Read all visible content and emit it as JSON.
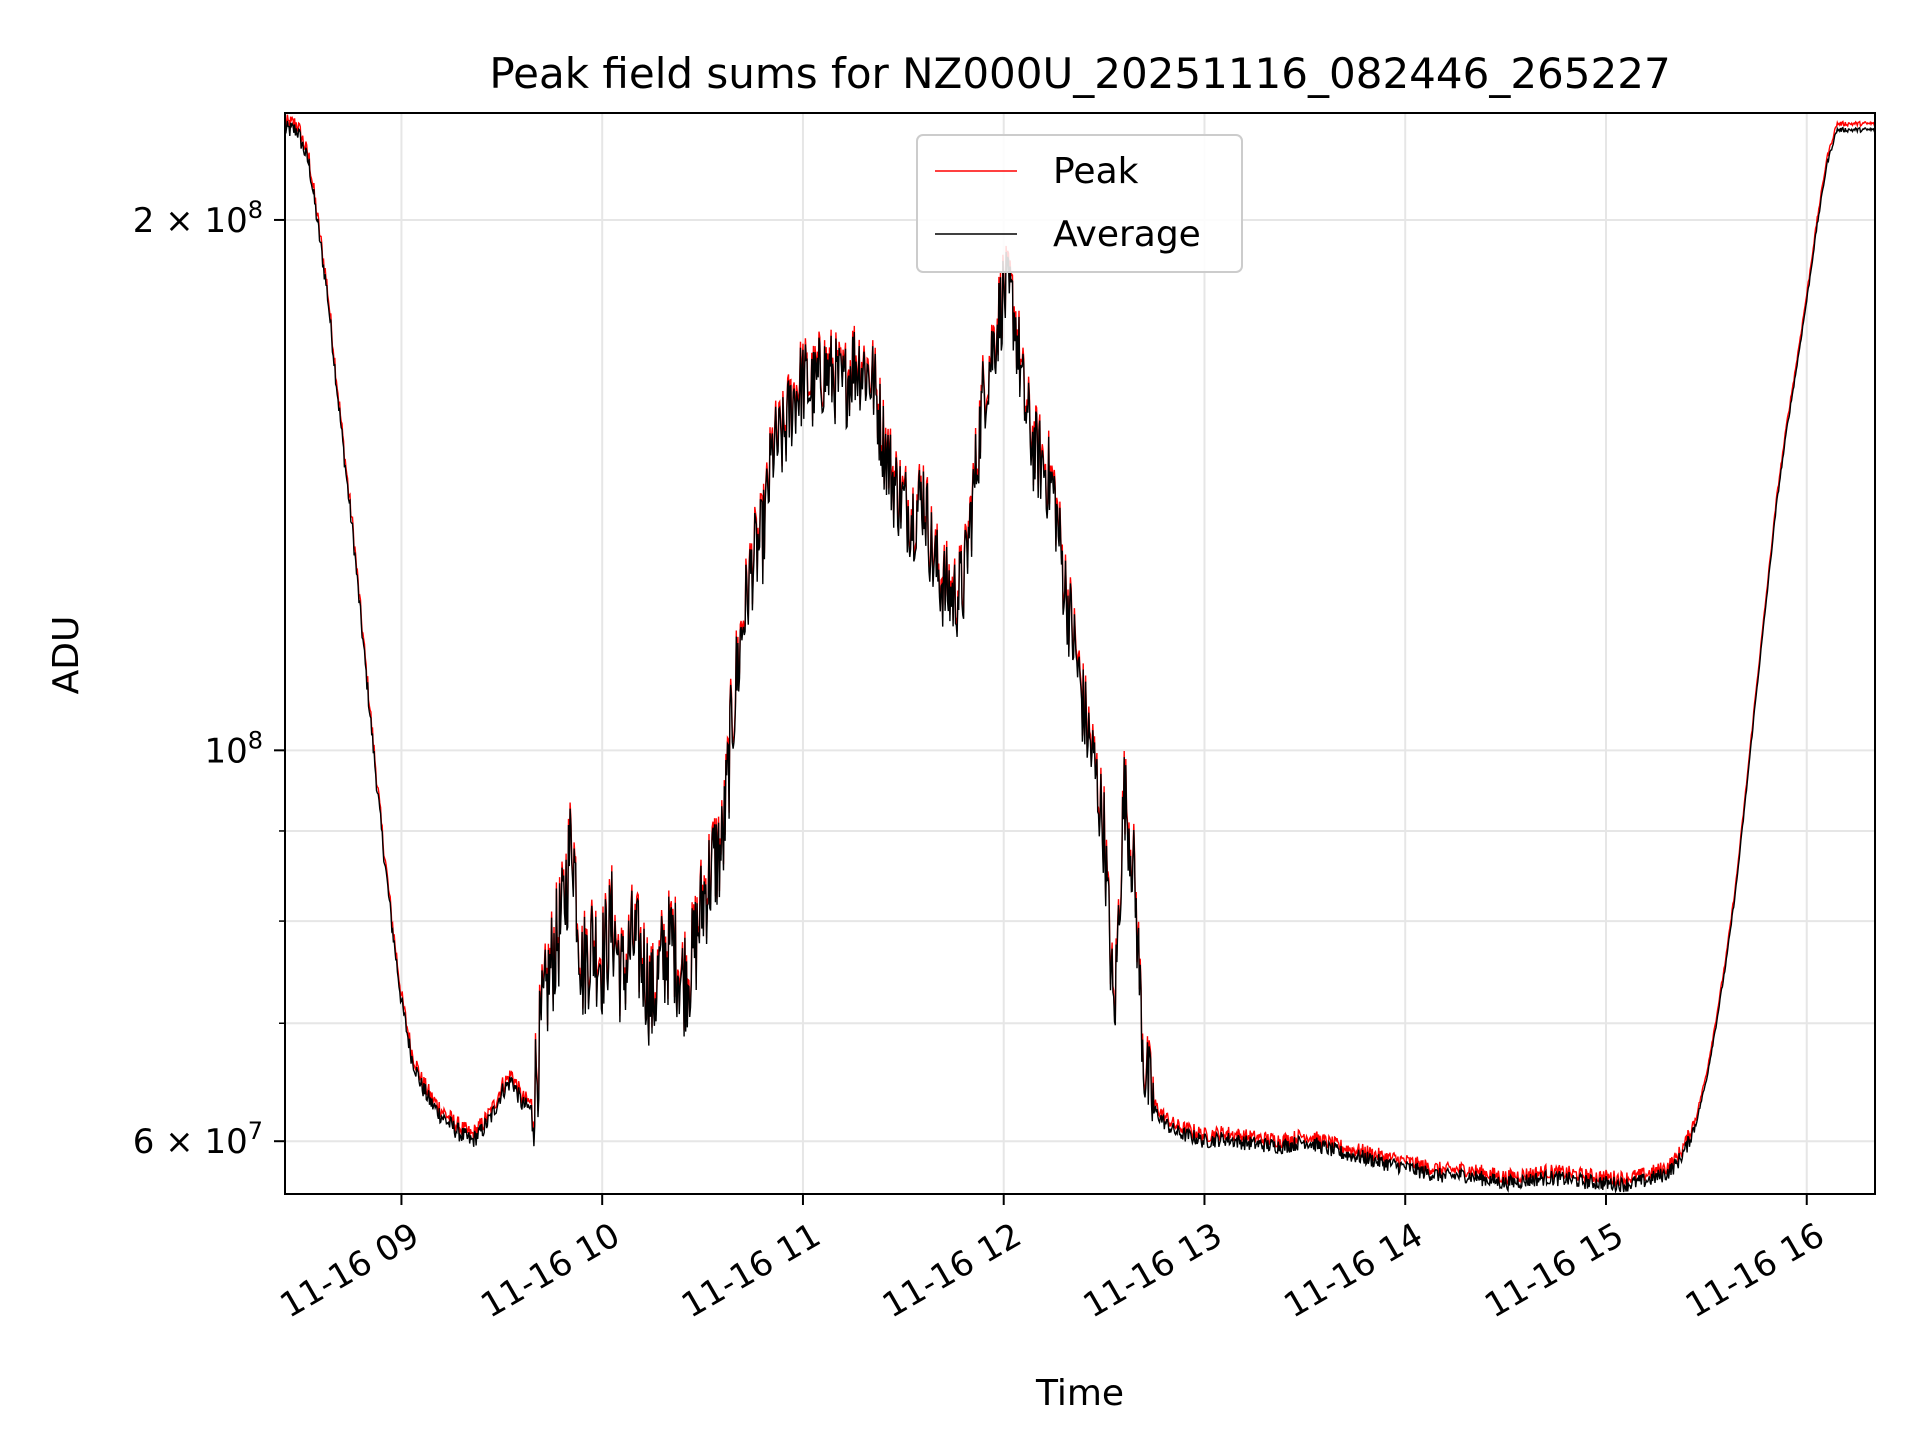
{
  "chart_data": {
    "type": "line",
    "title": "Peak field sums for NZ000U_20251116_082446_265227",
    "xlabel": "Time",
    "ylabel": "ADU",
    "yscale": "log",
    "xlim": [
      8.42,
      16.34
    ],
    "ylim": [
      56000000,
      230000000
    ],
    "grid": true,
    "legend_position": "upper center",
    "x_ticks": [
      {
        "value": 9,
        "label": "11-16 09"
      },
      {
        "value": 10,
        "label": "11-16 10"
      },
      {
        "value": 11,
        "label": "11-16 11"
      },
      {
        "value": 12,
        "label": "11-16 12"
      },
      {
        "value": 13,
        "label": "11-16 13"
      },
      {
        "value": 14,
        "label": "11-16 14"
      },
      {
        "value": 15,
        "label": "11-16 15"
      },
      {
        "value": 16,
        "label": "11-16 16"
      }
    ],
    "y_major_ticks": [
      {
        "value": 60000000,
        "mantissa": "6",
        "times": "×",
        "base": "10",
        "exp": "7"
      },
      {
        "value": 100000000,
        "mantissa": "",
        "times": "",
        "base": "10",
        "exp": "8"
      },
      {
        "value": 200000000,
        "mantissa": "2",
        "times": "×",
        "base": "10",
        "exp": "8"
      }
    ],
    "y_minor_ticks": [
      70000000,
      80000000,
      90000000
    ],
    "series": [
      {
        "name": "Peak",
        "color": "#ff0000",
        "offset_ratio": 1.008,
        "points": [
          [
            8.42,
            225000000
          ],
          [
            8.48,
            225000000
          ],
          [
            8.54,
            215000000
          ],
          [
            8.58,
            200000000
          ],
          [
            8.63,
            182000000
          ],
          [
            8.68,
            160000000
          ],
          [
            8.72,
            145000000
          ],
          [
            8.76,
            132000000
          ],
          [
            8.8,
            118000000
          ],
          [
            8.85,
            103000000
          ],
          [
            8.9,
            90000000
          ],
          [
            8.95,
            80000000
          ],
          [
            9.0,
            72000000
          ],
          [
            9.05,
            67000000
          ],
          [
            9.1,
            64500000
          ],
          [
            9.15,
            63000000
          ],
          [
            9.2,
            62000000
          ],
          [
            9.25,
            61200000
          ],
          [
            9.3,
            60500000
          ],
          [
            9.35,
            60000000
          ],
          [
            9.4,
            60800000
          ],
          [
            9.45,
            62000000
          ],
          [
            9.5,
            64000000
          ],
          [
            9.55,
            65000000
          ],
          [
            9.6,
            63000000
          ],
          [
            9.65,
            62500000
          ],
          [
            9.7,
            70000000
          ],
          [
            9.75,
            76000000
          ],
          [
            9.8,
            80000000
          ],
          [
            9.85,
            90000000
          ],
          [
            9.9,
            75000000
          ],
          [
            9.95,
            78000000
          ],
          [
            10.0,
            76000000
          ],
          [
            10.05,
            80000000
          ],
          [
            10.1,
            74000000
          ],
          [
            10.15,
            78000000
          ],
          [
            10.2,
            76000000
          ],
          [
            10.25,
            72000000
          ],
          [
            10.3,
            76000000
          ],
          [
            10.35,
            78000000
          ],
          [
            10.4,
            74000000
          ],
          [
            10.45,
            76000000
          ],
          [
            10.5,
            82000000
          ],
          [
            10.55,
            86000000
          ],
          [
            10.6,
            88000000
          ],
          [
            10.65,
            105000000
          ],
          [
            10.7,
            118000000
          ],
          [
            10.75,
            128000000
          ],
          [
            10.8,
            132000000
          ],
          [
            10.85,
            148000000
          ],
          [
            10.9,
            150000000
          ],
          [
            10.95,
            158000000
          ],
          [
            11.0,
            162000000
          ],
          [
            11.05,
            160000000
          ],
          [
            11.1,
            164000000
          ],
          [
            11.15,
            163000000
          ],
          [
            11.2,
            160000000
          ],
          [
            11.25,
            166000000
          ],
          [
            11.3,
            165000000
          ],
          [
            11.35,
            162000000
          ],
          [
            11.4,
            150000000
          ],
          [
            11.45,
            142000000
          ],
          [
            11.5,
            138000000
          ],
          [
            11.55,
            136000000
          ],
          [
            11.6,
            140000000
          ],
          [
            11.65,
            128000000
          ],
          [
            11.7,
            124000000
          ],
          [
            11.75,
            122000000
          ],
          [
            11.8,
            124000000
          ],
          [
            11.85,
            140000000
          ],
          [
            11.9,
            160000000
          ],
          [
            11.95,
            170000000
          ],
          [
            12.0,
            182000000
          ],
          [
            12.05,
            178000000
          ],
          [
            12.1,
            158000000
          ],
          [
            12.15,
            148000000
          ],
          [
            12.2,
            145000000
          ],
          [
            12.25,
            140000000
          ],
          [
            12.3,
            125000000
          ],
          [
            12.35,
            115000000
          ],
          [
            12.4,
            105000000
          ],
          [
            12.45,
            98000000
          ],
          [
            12.5,
            90000000
          ],
          [
            12.55,
            70000000
          ],
          [
            12.6,
            95000000
          ],
          [
            12.65,
            85000000
          ],
          [
            12.7,
            66000000
          ],
          [
            12.75,
            62500000
          ],
          [
            12.8,
            61500000
          ],
          [
            12.85,
            60800000
          ],
          [
            12.9,
            60500000
          ],
          [
            12.95,
            60300000
          ],
          [
            13.0,
            60000000
          ],
          [
            13.1,
            60200000
          ],
          [
            13.2,
            59900000
          ],
          [
            13.3,
            59700000
          ],
          [
            13.4,
            59600000
          ],
          [
            13.5,
            60000000
          ],
          [
            13.6,
            59500000
          ],
          [
            13.7,
            59000000
          ],
          [
            13.8,
            58700000
          ],
          [
            13.9,
            58300000
          ],
          [
            14.0,
            58000000
          ],
          [
            14.1,
            57600000
          ],
          [
            14.2,
            57300000
          ],
          [
            14.3,
            57400000
          ],
          [
            14.4,
            57100000
          ],
          [
            14.5,
            56800000
          ],
          [
            14.6,
            57000000
          ],
          [
            14.7,
            57200000
          ],
          [
            14.8,
            57100000
          ],
          [
            14.9,
            56900000
          ],
          [
            15.0,
            56800000
          ],
          [
            15.1,
            56700000
          ],
          [
            15.2,
            57000000
          ],
          [
            15.3,
            57500000
          ],
          [
            15.35,
            58200000
          ],
          [
            15.4,
            59500000
          ],
          [
            15.45,
            61500000
          ],
          [
            15.5,
            65000000
          ],
          [
            15.55,
            70000000
          ],
          [
            15.6,
            76000000
          ],
          [
            15.65,
            84000000
          ],
          [
            15.7,
            95000000
          ],
          [
            15.75,
            108000000
          ],
          [
            15.8,
            122000000
          ],
          [
            15.85,
            138000000
          ],
          [
            15.9,
            152000000
          ],
          [
            15.95,
            165000000
          ],
          [
            16.0,
            180000000
          ],
          [
            16.05,
            198000000
          ],
          [
            16.1,
            215000000
          ],
          [
            16.15,
            225000000
          ],
          [
            16.2,
            225000000
          ],
          [
            16.34,
            225000000
          ]
        ]
      },
      {
        "name": "Average",
        "color": "#000000",
        "offset_ratio": 1.0,
        "points": []
      }
    ]
  }
}
